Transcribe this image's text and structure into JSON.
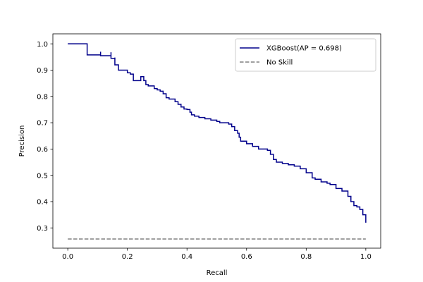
{
  "chart_data": {
    "type": "line",
    "title": "",
    "xlabel": "Recall",
    "ylabel": "Precision",
    "xlim": [
      -0.05,
      1.05
    ],
    "ylim": [
      0.223,
      1.038
    ],
    "xticks": [
      0.0,
      0.2,
      0.4,
      0.6,
      0.8,
      1.0
    ],
    "xtick_labels": [
      "0.0",
      "0.2",
      "0.4",
      "0.6",
      "0.8",
      "1.0"
    ],
    "yticks": [
      0.3,
      0.4,
      0.5,
      0.6,
      0.7,
      0.8,
      0.9,
      1.0
    ],
    "ytick_labels": [
      "0.3",
      "0.4",
      "0.5",
      "0.6",
      "0.7",
      "0.8",
      "0.9",
      "1.0"
    ],
    "grid": false,
    "legend_position": "upper-right",
    "series": [
      {
        "name": "XGBoost(AP = 0.698)",
        "color": "#00008b",
        "style": "solid",
        "x": [
          0.0,
          0.065,
          0.065,
          0.11,
          0.11,
          0.145,
          0.145,
          0.158,
          0.158,
          0.17,
          0.17,
          0.185,
          0.2,
          0.21,
          0.22,
          0.22,
          0.245,
          0.255,
          0.262,
          0.27,
          0.28,
          0.29,
          0.3,
          0.31,
          0.32,
          0.33,
          0.34,
          0.36,
          0.37,
          0.38,
          0.39,
          0.4,
          0.41,
          0.415,
          0.425,
          0.44,
          0.45,
          0.46,
          0.47,
          0.48,
          0.5,
          0.51,
          0.52,
          0.53,
          0.54,
          0.55,
          0.56,
          0.57,
          0.575,
          0.58,
          0.6,
          0.62,
          0.64,
          0.66,
          0.67,
          0.68,
          0.69,
          0.7,
          0.72,
          0.74,
          0.76,
          0.78,
          0.8,
          0.82,
          0.83,
          0.85,
          0.87,
          0.88,
          0.9,
          0.92,
          0.94,
          0.95,
          0.96,
          0.97,
          0.98,
          0.99,
          1.0
        ],
        "y": [
          1.0,
          1.0,
          0.958,
          0.97,
          0.955,
          0.968,
          0.945,
          0.948,
          0.92,
          0.922,
          0.9,
          0.9,
          0.89,
          0.885,
          0.885,
          0.86,
          0.875,
          0.86,
          0.845,
          0.84,
          0.84,
          0.83,
          0.825,
          0.82,
          0.81,
          0.795,
          0.79,
          0.78,
          0.77,
          0.76,
          0.752,
          0.75,
          0.74,
          0.73,
          0.725,
          0.72,
          0.72,
          0.715,
          0.715,
          0.71,
          0.705,
          0.7,
          0.7,
          0.7,
          0.695,
          0.685,
          0.67,
          0.66,
          0.645,
          0.63,
          0.62,
          0.61,
          0.6,
          0.6,
          0.595,
          0.58,
          0.56,
          0.55,
          0.545,
          0.54,
          0.535,
          0.525,
          0.51,
          0.49,
          0.485,
          0.475,
          0.47,
          0.465,
          0.45,
          0.44,
          0.42,
          0.4,
          0.385,
          0.38,
          0.37,
          0.35,
          0.32
        ]
      },
      {
        "name": "No Skill",
        "color": "#808080",
        "style": "dashed",
        "x": [
          0.0,
          1.0
        ],
        "y": [
          0.258,
          0.258
        ]
      }
    ]
  }
}
